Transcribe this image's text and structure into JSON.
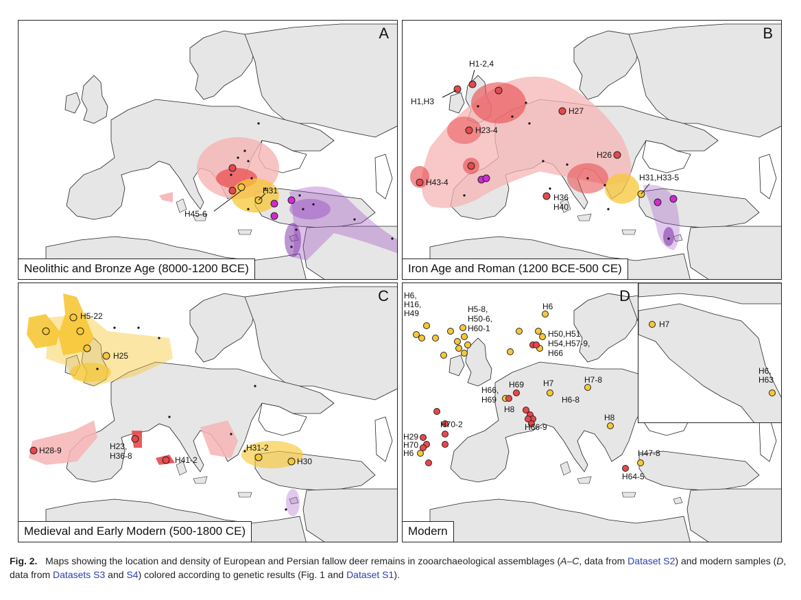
{
  "panels": [
    {
      "letter": "A",
      "title": "Neolithic and Bronze Age (8000-1200 BCE)",
      "labels": [
        "H31",
        "H45-6"
      ]
    },
    {
      "letter": "B",
      "title": "Iron Age and Roman (1200 BCE-500 CE)",
      "labels": [
        "H1-2,4",
        "H1,H3",
        "H27",
        "H23-4",
        "H26",
        "H31,H33-5",
        "H43-4",
        "H36",
        "H40"
      ]
    },
    {
      "letter": "C",
      "title": "Medieval and Early Modern (500-1800 CE)",
      "labels": [
        "H5-22",
        "H25",
        "H28-9",
        "H23,",
        "H36-8",
        "H41-2",
        "H31-2",
        "H30"
      ]
    },
    {
      "letter": "D",
      "title": "Modern",
      "labels": [
        "H6,",
        "H16,",
        "H49",
        "H5-8,",
        "H50-6,",
        "H60-1",
        "H6",
        "H50,H51",
        "H54,H57-9,",
        "H66",
        "H7",
        "H7-8",
        "H66,",
        "H69",
        "H69",
        "H6-8",
        "H8",
        "H66-9",
        "H70-2",
        "H29",
        "H70",
        "H6",
        "H8",
        "H47-8",
        "H64-5",
        "H7",
        "H6,",
        "H63"
      ]
    }
  ],
  "caption": {
    "fig": "Fig. 2.",
    "t1": "Maps showing the location and density of European and Persian fallow deer remains in zooarchaeological assemblages (",
    "t2": "A–C",
    "t3": ", data from ",
    "l1": "Dataset S2",
    "t4": ") and modern samples (",
    "t5": "D",
    "t6": ", data from ",
    "l2": "Datasets S3",
    "t7": " and ",
    "l3": "S4",
    "t8": ") colored according to genetic results (Fig. 1 and ",
    "l4": "Dataset S1",
    "t9": ")."
  },
  "colors": {
    "land": "#e6e6e6",
    "red": "#e8484c",
    "yellow": "#f7c737",
    "purple": "#9a4bc4",
    "magenta": "#d22ad2",
    "pink": "#f6b4b4"
  }
}
